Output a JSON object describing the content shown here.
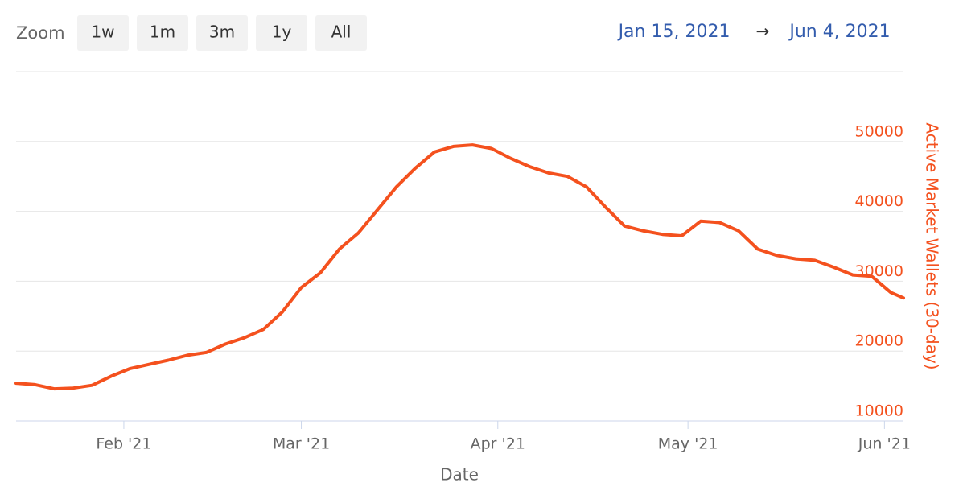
{
  "zoom": {
    "label": "Zoom",
    "buttons": [
      "1w",
      "1m",
      "3m",
      "1y",
      "All"
    ]
  },
  "range": {
    "from": "Jan 15, 2021",
    "arrow": "→",
    "to": "Jun 4, 2021"
  },
  "chart_data": {
    "type": "line",
    "x_label": "Date",
    "y_label": "Active Market Wallets (30-day)",
    "x": [
      "2021-01-15",
      "2021-01-18",
      "2021-01-21",
      "2021-01-24",
      "2021-01-27",
      "2021-01-30",
      "2021-02-02",
      "2021-02-05",
      "2021-02-08",
      "2021-02-11",
      "2021-02-14",
      "2021-02-17",
      "2021-02-20",
      "2021-02-23",
      "2021-02-26",
      "2021-03-01",
      "2021-03-04",
      "2021-03-07",
      "2021-03-10",
      "2021-03-13",
      "2021-03-16",
      "2021-03-19",
      "2021-03-22",
      "2021-03-25",
      "2021-03-28",
      "2021-03-31",
      "2021-04-03",
      "2021-04-06",
      "2021-04-09",
      "2021-04-12",
      "2021-04-15",
      "2021-04-18",
      "2021-04-21",
      "2021-04-24",
      "2021-04-27",
      "2021-04-30",
      "2021-05-03",
      "2021-05-06",
      "2021-05-09",
      "2021-05-12",
      "2021-05-15",
      "2021-05-18",
      "2021-05-21",
      "2021-05-24",
      "2021-05-27",
      "2021-05-30",
      "2021-06-02",
      "2021-06-04"
    ],
    "series": [
      {
        "name": "Active Market Wallets (30-day)",
        "color": "#f4511e",
        "values": [
          15400,
          15200,
          14600,
          14700,
          15100,
          16400,
          17500,
          18100,
          18700,
          19400,
          19800,
          21000,
          21900,
          23100,
          25600,
          29100,
          31200,
          34600,
          36900,
          40200,
          43500,
          46200,
          48500,
          49300,
          49500,
          49000,
          47600,
          46400,
          45500,
          45000,
          43500,
          40600,
          37900,
          37200,
          36700,
          36500,
          38600,
          38400,
          37200,
          34600,
          33700,
          33200,
          33000,
          32000,
          30900,
          30700,
          28400,
          27600
        ]
      }
    ],
    "xlim": [
      "2021-01-15",
      "2021-06-04"
    ],
    "xticks": [
      {
        "value": "2021-02-01",
        "label": "Feb '21"
      },
      {
        "value": "2021-03-01",
        "label": "Mar '21"
      },
      {
        "value": "2021-04-01",
        "label": "Apr '21"
      },
      {
        "value": "2021-05-01",
        "label": "May '21"
      },
      {
        "value": "2021-06-01",
        "label": "Jun '21"
      }
    ],
    "ylim": [
      10000,
      60000
    ],
    "yticks": [
      10000,
      20000,
      30000,
      40000,
      50000
    ],
    "grid": true
  }
}
